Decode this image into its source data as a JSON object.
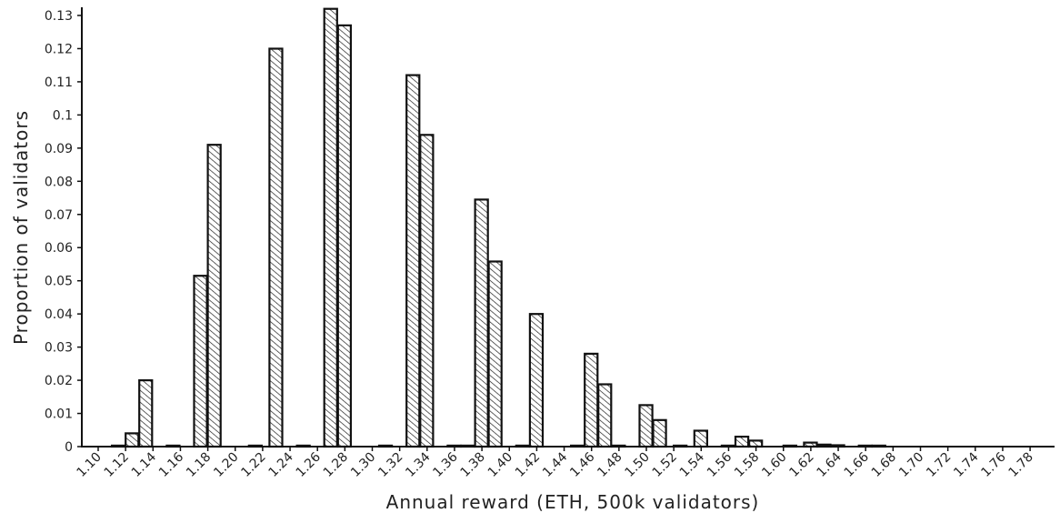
{
  "chart_data": {
    "type": "bar",
    "title": "",
    "xlabel": "Annual reward (ETH, 500k validators)",
    "ylabel": "Proportion of validators",
    "x_ticks": [
      "1.10",
      "1.12",
      "1.14",
      "1.16",
      "1.18",
      "1.20",
      "1.22",
      "1.24",
      "1.26",
      "1.28",
      "1.30",
      "1.32",
      "1.34",
      "1.36",
      "1.38",
      "1.40",
      "1.42",
      "1.44",
      "1.46",
      "1.48",
      "1.50",
      "1.52",
      "1.54",
      "1.56",
      "1.58",
      "1.60",
      "1.62",
      "1.64",
      "1.66",
      "1.68",
      "1.70",
      "1.72",
      "1.74",
      "1.76",
      "1.78"
    ],
    "y_ticks": [
      "0",
      "0.01",
      "0.02",
      "0.03",
      "0.04",
      "0.05",
      "0.06",
      "0.07",
      "0.08",
      "0.09",
      "0.1",
      "0.11",
      "0.12",
      "0.13"
    ],
    "xlim": [
      1.1,
      1.79
    ],
    "ylim": [
      0,
      0.131
    ],
    "bin_width": 0.01,
    "bars": [
      {
        "x": 1.11,
        "value": 0.0003
      },
      {
        "x": 1.12,
        "value": 0.004
      },
      {
        "x": 1.13,
        "value": 0.02
      },
      {
        "x": 1.15,
        "value": 0.0003
      },
      {
        "x": 1.17,
        "value": 0.0515
      },
      {
        "x": 1.18,
        "value": 0.091
      },
      {
        "x": 1.21,
        "value": 0.0003
      },
      {
        "x": 1.225,
        "value": 0.12
      },
      {
        "x": 1.245,
        "value": 0.0003
      },
      {
        "x": 1.265,
        "value": 0.132
      },
      {
        "x": 1.275,
        "value": 0.127
      },
      {
        "x": 1.305,
        "value": 0.0003
      },
      {
        "x": 1.325,
        "value": 0.112
      },
      {
        "x": 1.335,
        "value": 0.094
      },
      {
        "x": 1.355,
        "value": 0.0003
      },
      {
        "x": 1.365,
        "value": 0.0003
      },
      {
        "x": 1.375,
        "value": 0.0745
      },
      {
        "x": 1.385,
        "value": 0.0558
      },
      {
        "x": 1.405,
        "value": 0.0003
      },
      {
        "x": 1.415,
        "value": 0.04
      },
      {
        "x": 1.445,
        "value": 0.0003
      },
      {
        "x": 1.455,
        "value": 0.028
      },
      {
        "x": 1.465,
        "value": 0.0188
      },
      {
        "x": 1.475,
        "value": 0.0003
      },
      {
        "x": 1.495,
        "value": 0.0125
      },
      {
        "x": 1.505,
        "value": 0.008
      },
      {
        "x": 1.52,
        "value": 0.0003
      },
      {
        "x": 1.535,
        "value": 0.0048
      },
      {
        "x": 1.555,
        "value": 0.0003
      },
      {
        "x": 1.565,
        "value": 0.003
      },
      {
        "x": 1.575,
        "value": 0.0018
      },
      {
        "x": 1.6,
        "value": 0.0003
      },
      {
        "x": 1.615,
        "value": 0.0012
      },
      {
        "x": 1.625,
        "value": 0.0006
      },
      {
        "x": 1.635,
        "value": 0.0004
      },
      {
        "x": 1.655,
        "value": 0.0003
      },
      {
        "x": 1.665,
        "value": 0.0003
      }
    ],
    "grid": false,
    "style": "hand-drawn, diagonal hatch fill"
  }
}
